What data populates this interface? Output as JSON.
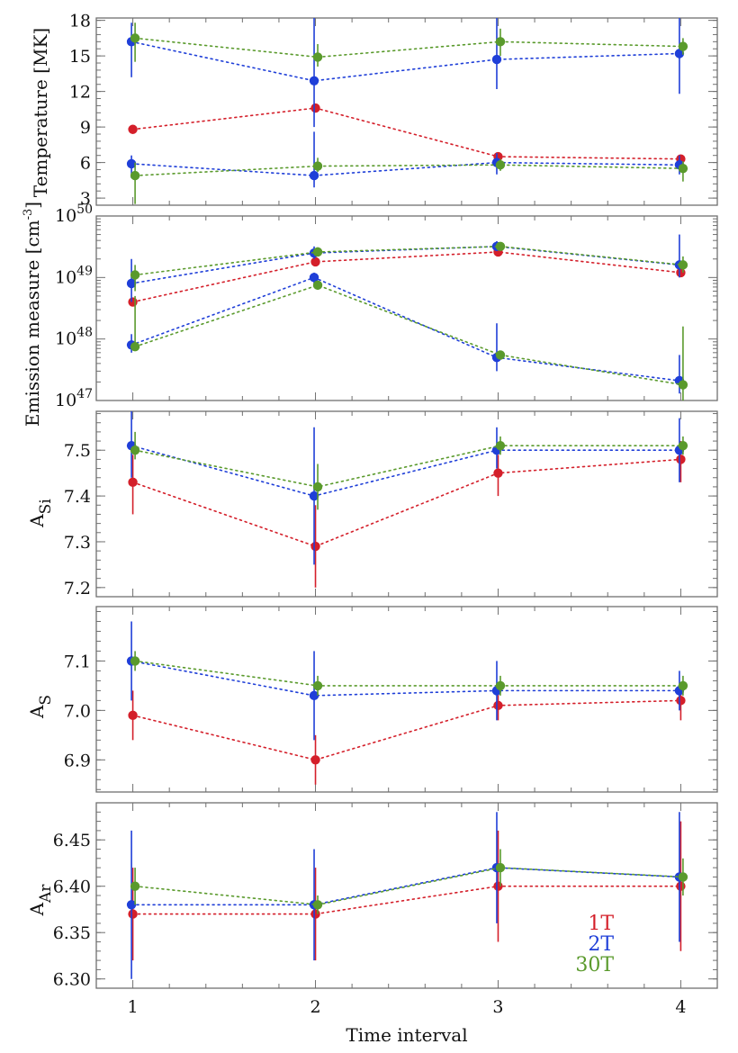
{
  "chart_data": {
    "type": "scatter",
    "xlabel": "Time interval",
    "x": [
      1,
      2,
      3,
      4
    ],
    "xticklabels": [
      "1",
      "2",
      "3",
      "4"
    ],
    "colors": {
      "1T": "#d41f2a",
      "2T": "#1f3fd8",
      "30T": "#5a9a2c"
    },
    "legend": {
      "position": "bottom-right",
      "entries": [
        "1T",
        "2T",
        "30T"
      ]
    },
    "panels": [
      {
        "id": "temperature",
        "ylabel": "Temperature [MK]",
        "ylim": [
          2.4,
          18.2
        ],
        "yticks": [
          3,
          6,
          9,
          12,
          15,
          18
        ],
        "yticklabels": [
          "3",
          "6",
          "9",
          "12",
          "15",
          "18"
        ],
        "series": [
          {
            "name": "1T",
            "values": [
              8.8,
              10.6,
              6.5,
              6.3
            ],
            "err_low": [
              8.6,
              10.4,
              6.3,
              6.1
            ],
            "err_high": [
              9.0,
              10.8,
              6.7,
              6.5
            ]
          },
          {
            "name": "2T-hot",
            "color_key": "2T",
            "values": [
              16.2,
              12.9,
              14.7,
              15.2
            ],
            "err_low": [
              13.2,
              9.0,
              12.2,
              11.8
            ],
            "err_high": [
              17.8,
              18.2,
              18.2,
              18.2
            ]
          },
          {
            "name": "30T-hot",
            "color_key": "30T",
            "values": [
              16.5,
              14.9,
              16.2,
              15.8
            ],
            "err_low": [
              14.5,
              14.1,
              15.0,
              15.1
            ],
            "err_high": [
              17.8,
              16.0,
              17.3,
              16.5
            ]
          },
          {
            "name": "2T-cool",
            "color_key": "2T",
            "values": [
              5.9,
              4.9,
              6.0,
              5.8
            ],
            "err_low": [
              4.7,
              3.9,
              5.0,
              5.0
            ],
            "err_high": [
              6.6,
              8.6,
              6.8,
              6.6
            ]
          },
          {
            "name": "30T-cool",
            "color_key": "30T",
            "values": [
              4.9,
              5.7,
              5.8,
              5.5
            ],
            "err_low": [
              2.5,
              5.2,
              5.3,
              4.4
            ],
            "err_high": [
              6.0,
              6.4,
              6.3,
              6.1
            ]
          }
        ]
      },
      {
        "id": "emission",
        "ylabel": "Emission measure [cm-3]",
        "ylabel_main": "Emission measure [cm",
        "ylabel_sup": "-3",
        "ylabel_close": "]",
        "yscale": "log",
        "ylim": [
          1e+47,
          1e+50
        ],
        "yticks": [
          1e+47,
          1e+48,
          1e+49,
          1e+50
        ],
        "ytick_bases": [
          "10",
          "10",
          "10",
          "10"
        ],
        "ytick_exponents": [
          "47",
          "48",
          "49",
          "50"
        ],
        "series": [
          {
            "name": "1T",
            "values": [
              4e+48,
              1.8e+49,
              2.6e+49,
              1.2e+49
            ],
            "err_low": [
              3.5e+48,
              1.6e+49,
              2.4e+49,
              1.1e+49
            ],
            "err_high": [
              4.5e+48,
              2e+49,
              2.8e+49,
              1.35e+49
            ]
          },
          {
            "name": "2T-hot",
            "color_key": "2T",
            "values": [
              8e+48,
              2.5e+49,
              3.2e+49,
              1.6e+49
            ],
            "err_low": [
              4e+48,
              2e+49,
              2.7e+49,
              1e+49
            ],
            "err_high": [
              2e+49,
              3.2e+49,
              3.9e+49,
              5e+49
            ]
          },
          {
            "name": "30T-hot",
            "color_key": "30T",
            "values": [
              1.1e+49,
              2.6e+49,
              3.2e+49,
              1.6e+49
            ],
            "err_low": [
              6e+48,
              2.2e+49,
              2.9e+49,
              1.2e+49
            ],
            "err_high": [
              1.6e+49,
              3.1e+49,
              3.6e+49,
              2.2e+49
            ]
          },
          {
            "name": "2T-cool",
            "color_key": "2T",
            "values": [
              8e+47,
              1e+49,
              5e+47,
              2.1e+47
            ],
            "err_low": [
              6e+47,
              8e+48,
              3e+47,
              1.3e+47
            ],
            "err_high": [
              1.2e+48,
              1.2e+49,
              1.8e+48,
              5.5e+47
            ]
          },
          {
            "name": "30T-cool",
            "color_key": "30T",
            "values": [
              7.5e+47,
              7.5e+48,
              5.5e+47,
              1.8e+47
            ],
            "err_low": [
              6.5e+47,
              6.5e+48,
              4.8e+47,
              1e+47
            ],
            "err_high": [
              5e+48,
              8.5e+48,
              6.3e+47,
              1.6e+48
            ]
          }
        ]
      },
      {
        "id": "si",
        "ylabel_main": "A",
        "ylabel_sub": "Si",
        "ylim": [
          7.18,
          7.585
        ],
        "yticks": [
          7.2,
          7.3,
          7.4,
          7.5
        ],
        "yticklabels": [
          "7.2",
          "7.3",
          "7.4",
          "7.5"
        ],
        "series": [
          {
            "name": "1T",
            "values": [
              7.43,
              7.29,
              7.45,
              7.48
            ],
            "err_low": [
              7.36,
              7.2,
              7.4,
              7.43
            ],
            "err_high": [
              7.49,
              7.38,
              7.49,
              7.52
            ]
          },
          {
            "name": "2T",
            "values": [
              7.51,
              7.4,
              7.5,
              7.5
            ],
            "err_low": [
              7.44,
              7.25,
              7.46,
              7.43
            ],
            "err_high": [
              7.585,
              7.55,
              7.55,
              7.57
            ]
          },
          {
            "name": "30T",
            "values": [
              7.5,
              7.42,
              7.51,
              7.51
            ],
            "err_low": [
              7.48,
              7.37,
              7.49,
              7.49
            ],
            "err_high": [
              7.54,
              7.47,
              7.53,
              7.53
            ]
          }
        ]
      },
      {
        "id": "s",
        "ylabel_main": "A",
        "ylabel_sub": "S",
        "ylim": [
          6.835,
          7.21
        ],
        "yticks": [
          6.9,
          7.0,
          7.1
        ],
        "yticklabels": [
          "6.9",
          "7.0",
          "7.1"
        ],
        "series": [
          {
            "name": "1T",
            "values": [
              6.99,
              6.9,
              7.01,
              7.02
            ],
            "err_low": [
              6.94,
              6.85,
              6.98,
              6.98
            ],
            "err_high": [
              7.04,
              6.95,
              7.04,
              7.05
            ]
          },
          {
            "name": "2T",
            "values": [
              7.1,
              7.03,
              7.04,
              7.04
            ],
            "err_low": [
              7.02,
              6.94,
              6.98,
              7.0
            ],
            "err_high": [
              7.18,
              7.12,
              7.1,
              7.08
            ]
          },
          {
            "name": "30T",
            "values": [
              7.1,
              7.05,
              7.05,
              7.05
            ],
            "err_low": [
              7.08,
              7.03,
              7.03,
              7.03
            ],
            "err_high": [
              7.12,
              7.07,
              7.07,
              7.07
            ]
          }
        ]
      },
      {
        "id": "ar",
        "ylabel_main": "A",
        "ylabel_sub": "Ar",
        "ylim": [
          6.29,
          6.49
        ],
        "yticks": [
          6.3,
          6.35,
          6.4,
          6.45
        ],
        "yticklabels": [
          "6.30",
          "6.35",
          "6.40",
          "6.45"
        ],
        "series": [
          {
            "name": "1T",
            "values": [
              6.37,
              6.37,
              6.4,
              6.4
            ],
            "err_low": [
              6.32,
              6.32,
              6.34,
              6.33
            ],
            "err_high": [
              6.42,
              6.42,
              6.46,
              6.47
            ]
          },
          {
            "name": "2T",
            "values": [
              6.38,
              6.38,
              6.42,
              6.41
            ],
            "err_low": [
              6.3,
              6.32,
              6.36,
              6.34
            ],
            "err_high": [
              6.46,
              6.44,
              6.48,
              6.48
            ]
          },
          {
            "name": "30T",
            "values": [
              6.4,
              6.38,
              6.42,
              6.41
            ],
            "err_low": [
              6.38,
              6.37,
              6.4,
              6.39
            ],
            "err_high": [
              6.42,
              6.39,
              6.44,
              6.43
            ]
          }
        ]
      }
    ]
  }
}
